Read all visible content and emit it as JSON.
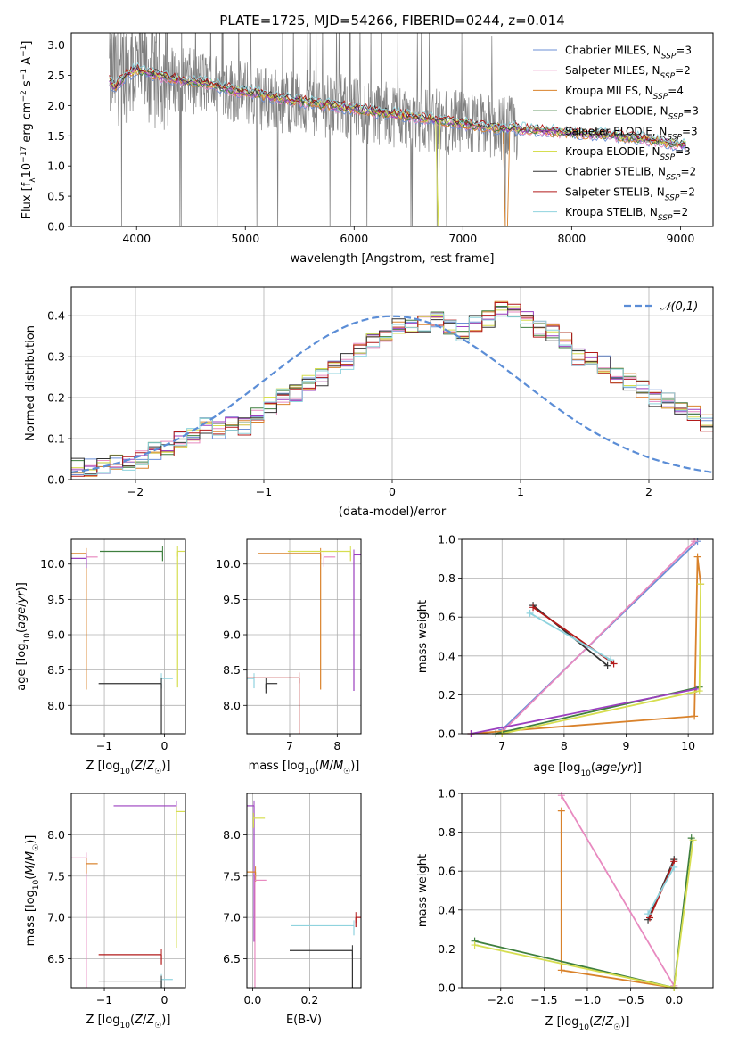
{
  "title": "PLATE=1725, MJD=54266, FIBERID=0244, z=0.014",
  "colors": {
    "Chabrier MILES": "#6b8fd6",
    "Salpeter MILES": "#e88ac0",
    "Kroupa MILES": "#d9822b",
    "Chabrier ELODIE": "#3f7f3f",
    "Salpeter ELODIE": "#9b3fbf",
    "Kroupa ELODIE": "#d6de50",
    "Chabrier STELIB": "#333333",
    "Salpeter STELIB": "#b21a1a",
    "Kroupa STELIB": "#8fd3de",
    "data": "#808080"
  },
  "chart_data": [
    {
      "id": "spectrum",
      "type": "line",
      "title": "PLATE=1725, MJD=54266, FIBERID=0244, z=0.014",
      "xlabel": "wavelength [Angstrom, rest frame]",
      "ylabel": "Flux [f_λ 10^-17 erg cm^-2 s^-1 A^-1]",
      "xlim": [
        3400,
        9300
      ],
      "ylim": [
        0,
        3.2
      ],
      "xticks": [
        4000,
        5000,
        6000,
        7000,
        8000,
        9000
      ],
      "yticks": [
        0.0,
        0.5,
        1.0,
        1.5,
        2.0,
        2.5,
        3.0
      ],
      "grid": false,
      "legend_position": "top-right",
      "legend": [
        "Chabrier MILES, N_SSP=3",
        "Salpeter MILES, N_SSP=2",
        "Kroupa MILES, N_SSP=4",
        "Chabrier ELODIE, N_SSP=3",
        "Salpeter ELODIE, N_SSP=3",
        "Kroupa ELODIE, N_SSP=3",
        "Chabrier STELIB, N_SSP=2",
        "Salpeter STELIB, N_SSP=2",
        "Kroupa STELIB, N_SSP=2"
      ],
      "data_trend": {
        "x": [
          3750,
          3900,
          4100,
          4300,
          4500,
          4700,
          4900,
          5100,
          5300,
          5500,
          5800,
          6100,
          6400,
          6700,
          7000,
          7300,
          7500,
          7800,
          8000,
          8200,
          8400,
          8600,
          8800,
          9000
        ],
        "y": [
          2.5,
          2.6,
          2.55,
          2.45,
          2.4,
          2.35,
          2.25,
          2.15,
          2.1,
          2.05,
          2.0,
          1.9,
          1.85,
          1.75,
          1.7,
          1.65,
          1.6,
          1.6,
          1.55,
          1.55,
          1.5,
          1.45,
          1.4,
          1.35
        ]
      },
      "models_trend": {
        "x": [
          3750,
          3800,
          3900,
          4000,
          4100,
          4300,
          4500,
          4700,
          4900,
          5100,
          5300,
          5600,
          6000,
          6400,
          6800,
          7200,
          7600,
          8000,
          8400,
          8800,
          9000
        ],
        "y": [
          2.4,
          2.3,
          2.5,
          2.6,
          2.55,
          2.45,
          2.4,
          2.35,
          2.25,
          2.2,
          2.12,
          2.05,
          1.95,
          1.85,
          1.75,
          1.65,
          1.6,
          1.55,
          1.5,
          1.42,
          1.35
        ]
      }
    },
    {
      "id": "residual_histogram",
      "type": "line",
      "xlabel": "(data-model)/error",
      "ylabel": "Normed distribution",
      "xlim": [
        -2.5,
        2.5
      ],
      "ylim": [
        0,
        0.47
      ],
      "xticks": [
        -2,
        -1,
        0,
        1,
        2
      ],
      "yticks": [
        0.0,
        0.1,
        0.2,
        0.3,
        0.4
      ],
      "grid": true,
      "legend_position": "top-right",
      "legend": [
        "𝒩(0,1)"
      ],
      "normal_curve": "N(0,1)",
      "bin_width": 0.1,
      "bins_start": -2.5,
      "mean_hist": [
        0.03,
        0.03,
        0.035,
        0.04,
        0.04,
        0.05,
        0.07,
        0.075,
        0.1,
        0.11,
        0.13,
        0.12,
        0.14,
        0.13,
        0.16,
        0.18,
        0.2,
        0.21,
        0.24,
        0.25,
        0.27,
        0.29,
        0.31,
        0.34,
        0.35,
        0.37,
        0.38,
        0.38,
        0.39,
        0.37,
        0.36,
        0.38,
        0.39,
        0.42,
        0.41,
        0.39,
        0.37,
        0.36,
        0.34,
        0.3,
        0.29,
        0.28,
        0.25,
        0.24,
        0.22,
        0.2,
        0.19,
        0.17,
        0.16,
        0.14
      ]
    },
    {
      "id": "age_vs_Z",
      "type": "scatter",
      "xlabel": "Z [log10(Z/Z☉)]",
      "ylabel": "age [log10(age/yr)]",
      "xlim": [
        -1.55,
        0.35
      ],
      "ylim": [
        7.6,
        10.35
      ],
      "xticks": [
        -1,
        0
      ],
      "yticks": [
        8.0,
        8.5,
        9.0,
        9.5,
        10.0
      ],
      "grid": true,
      "points": [
        {
          "series": "Kroupa MILES",
          "x": -1.3,
          "y": 10.15
        },
        {
          "series": "Salpeter MILES",
          "x": -1.3,
          "y": 10.1
        },
        {
          "series": "Salpeter ELODIE",
          "x": -1.3,
          "y": 10.08
        },
        {
          "series": "Kroupa ELODIE",
          "x": 0.22,
          "y": 10.18
        },
        {
          "series": "Chabrier ELODIE",
          "x": -0.03,
          "y": 10.18
        },
        {
          "series": "Kroupa STELIB",
          "x": -0.05,
          "y": 8.38
        },
        {
          "series": "Chabrier STELIB",
          "x": -0.05,
          "y": 8.31
        }
      ]
    },
    {
      "id": "age_vs_mass",
      "type": "scatter",
      "xlabel": "mass [log10(M/M☉)]",
      "ylabel": "",
      "xlim": [
        6.1,
        8.5
      ],
      "ylim": [
        7.6,
        10.35
      ],
      "xticks": [
        7,
        8
      ],
      "yticks": [
        8.0,
        8.5,
        9.0,
        9.5,
        10.0
      ],
      "grid": true,
      "points": [
        {
          "series": "Kroupa MILES",
          "x": 7.65,
          "y": 10.15
        },
        {
          "series": "Salpeter MILES",
          "x": 7.72,
          "y": 10.1
        },
        {
          "series": "Kroupa ELODIE",
          "x": 8.28,
          "y": 10.18
        },
        {
          "series": "Salpeter ELODIE",
          "x": 8.35,
          "y": 10.13
        },
        {
          "series": "Kroupa STELIB",
          "x": 6.25,
          "y": 8.38
        },
        {
          "series": "Chabrier STELIB",
          "x": 6.5,
          "y": 8.31
        },
        {
          "series": "Salpeter STELIB",
          "x": 7.2,
          "y": 8.39
        }
      ]
    },
    {
      "id": "weight_vs_age",
      "type": "line",
      "xlabel": "age [log10(age/yr)]",
      "ylabel": "mass weight",
      "xlim": [
        6.35,
        10.4
      ],
      "ylim": [
        0,
        1.0
      ],
      "xticks": [
        7,
        8,
        9,
        10
      ],
      "yticks": [
        0.0,
        0.2,
        0.4,
        0.6,
        0.8,
        1.0
      ],
      "grid": true,
      "series": [
        {
          "name": "Chabrier MILES",
          "x": [
            7.0,
            10.15
          ],
          "y": [
            0.02,
            0.99
          ]
        },
        {
          "name": "Salpeter MILES",
          "x": [
            7.0,
            10.1
          ],
          "y": [
            0.01,
            0.99
          ]
        },
        {
          "name": "Kroupa MILES",
          "x": [
            6.5,
            10.1,
            10.15,
            10.2
          ],
          "y": [
            0.0,
            0.09,
            0.91,
            0.77
          ]
        },
        {
          "name": "Chabrier ELODIE",
          "x": [
            6.9,
            10.18
          ],
          "y": [
            0.0,
            0.24
          ]
        },
        {
          "name": "Salpeter ELODIE",
          "x": [
            6.5,
            10.13
          ],
          "y": [
            0.0,
            0.23
          ]
        },
        {
          "name": "Kroupa ELODIE",
          "x": [
            7.0,
            10.18,
            10.2
          ],
          "y": [
            0.0,
            0.22,
            0.77
          ]
        },
        {
          "name": "Chabrier STELIB",
          "x": [
            7.5,
            8.7
          ],
          "y": [
            0.66,
            0.35
          ]
        },
        {
          "name": "Salpeter STELIB",
          "x": [
            7.5,
            8.8
          ],
          "y": [
            0.65,
            0.36
          ]
        },
        {
          "name": "Kroupa STELIB",
          "x": [
            7.45,
            8.75
          ],
          "y": [
            0.62,
            0.38
          ]
        }
      ]
    },
    {
      "id": "mass_vs_Z",
      "type": "scatter",
      "xlabel": "Z [log10(Z/Z☉)]",
      "ylabel": "mass [log10(M/M☉)]",
      "xlim": [
        -1.55,
        0.35
      ],
      "ylim": [
        6.15,
        8.5
      ],
      "xticks": [
        -1,
        0
      ],
      "yticks": [
        6.5,
        7.0,
        7.5,
        8.0
      ],
      "grid": true,
      "points": [
        {
          "series": "Salpeter MILES",
          "x": -1.3,
          "y": 7.72
        },
        {
          "series": "Kroupa MILES",
          "x": -1.3,
          "y": 7.65
        },
        {
          "series": "Salpeter ELODIE",
          "x": 0.2,
          "y": 8.35
        },
        {
          "series": "Kroupa ELODIE",
          "x": 0.2,
          "y": 8.28
        },
        {
          "series": "Salpeter STELIB",
          "x": -0.05,
          "y": 6.55
        },
        {
          "series": "Kroupa STELIB",
          "x": -0.05,
          "y": 6.25
        },
        {
          "series": "Chabrier STELIB",
          "x": -0.05,
          "y": 6.23
        }
      ]
    },
    {
      "id": "mass_vs_EBV",
      "type": "scatter",
      "xlabel": "E(B-V)",
      "ylabel": "",
      "xlim": [
        -0.02,
        0.38
      ],
      "ylim": [
        6.15,
        8.5
      ],
      "xticks": [
        0.0,
        0.2
      ],
      "yticks": [
        6.5,
        7.0,
        7.5,
        8.0
      ],
      "grid": true,
      "points": [
        {
          "series": "Salpeter ELODIE",
          "x": 0.005,
          "y": 8.35
        },
        {
          "series": "Kroupa ELODIE",
          "x": 0.003,
          "y": 8.2
        },
        {
          "series": "Kroupa MILES",
          "x": 0.01,
          "y": 7.55
        },
        {
          "series": "Salpeter MILES",
          "x": 0.008,
          "y": 7.45
        },
        {
          "series": "Kroupa STELIB",
          "x": 0.355,
          "y": 6.9
        },
        {
          "series": "Salpeter STELIB",
          "x": 0.362,
          "y": 7.0
        },
        {
          "series": "Chabrier STELIB",
          "x": 0.35,
          "y": 6.6
        }
      ]
    },
    {
      "id": "weight_vs_Z",
      "type": "line",
      "xlabel": "Z [log10(Z/Z☉)]",
      "ylabel": "mass weight",
      "xlim": [
        -2.45,
        0.45
      ],
      "ylim": [
        0,
        1.0
      ],
      "xticks": [
        -2.0,
        -1.5,
        -1.0,
        -0.5,
        0.0
      ],
      "yticks": [
        0.0,
        0.2,
        0.4,
        0.6,
        0.8,
        1.0
      ],
      "grid": true,
      "series": [
        {
          "name": "Salpeter MILES",
          "x": [
            -1.3,
            0.0
          ],
          "y": [
            0.99,
            0.01
          ]
        },
        {
          "name": "Kroupa MILES",
          "x": [
            -1.3,
            -1.3,
            0.0
          ],
          "y": [
            0.91,
            0.09,
            0.0
          ]
        },
        {
          "name": "Chabrier ELODIE",
          "x": [
            -2.3,
            0.0,
            0.2
          ],
          "y": [
            0.24,
            0.0,
            0.77
          ]
        },
        {
          "name": "Kroupa ELODIE",
          "x": [
            -2.3,
            0.0,
            0.22
          ],
          "y": [
            0.22,
            0.0,
            0.76
          ]
        },
        {
          "name": "Chabrier STELIB",
          "x": [
            -0.3,
            0.0
          ],
          "y": [
            0.35,
            0.66
          ]
        },
        {
          "name": "Salpeter STELIB",
          "x": [
            -0.28,
            0.0
          ],
          "y": [
            0.36,
            0.65
          ]
        },
        {
          "name": "Kroupa STELIB",
          "x": [
            -0.3,
            0.0
          ],
          "y": [
            0.38,
            0.62
          ]
        }
      ]
    }
  ]
}
